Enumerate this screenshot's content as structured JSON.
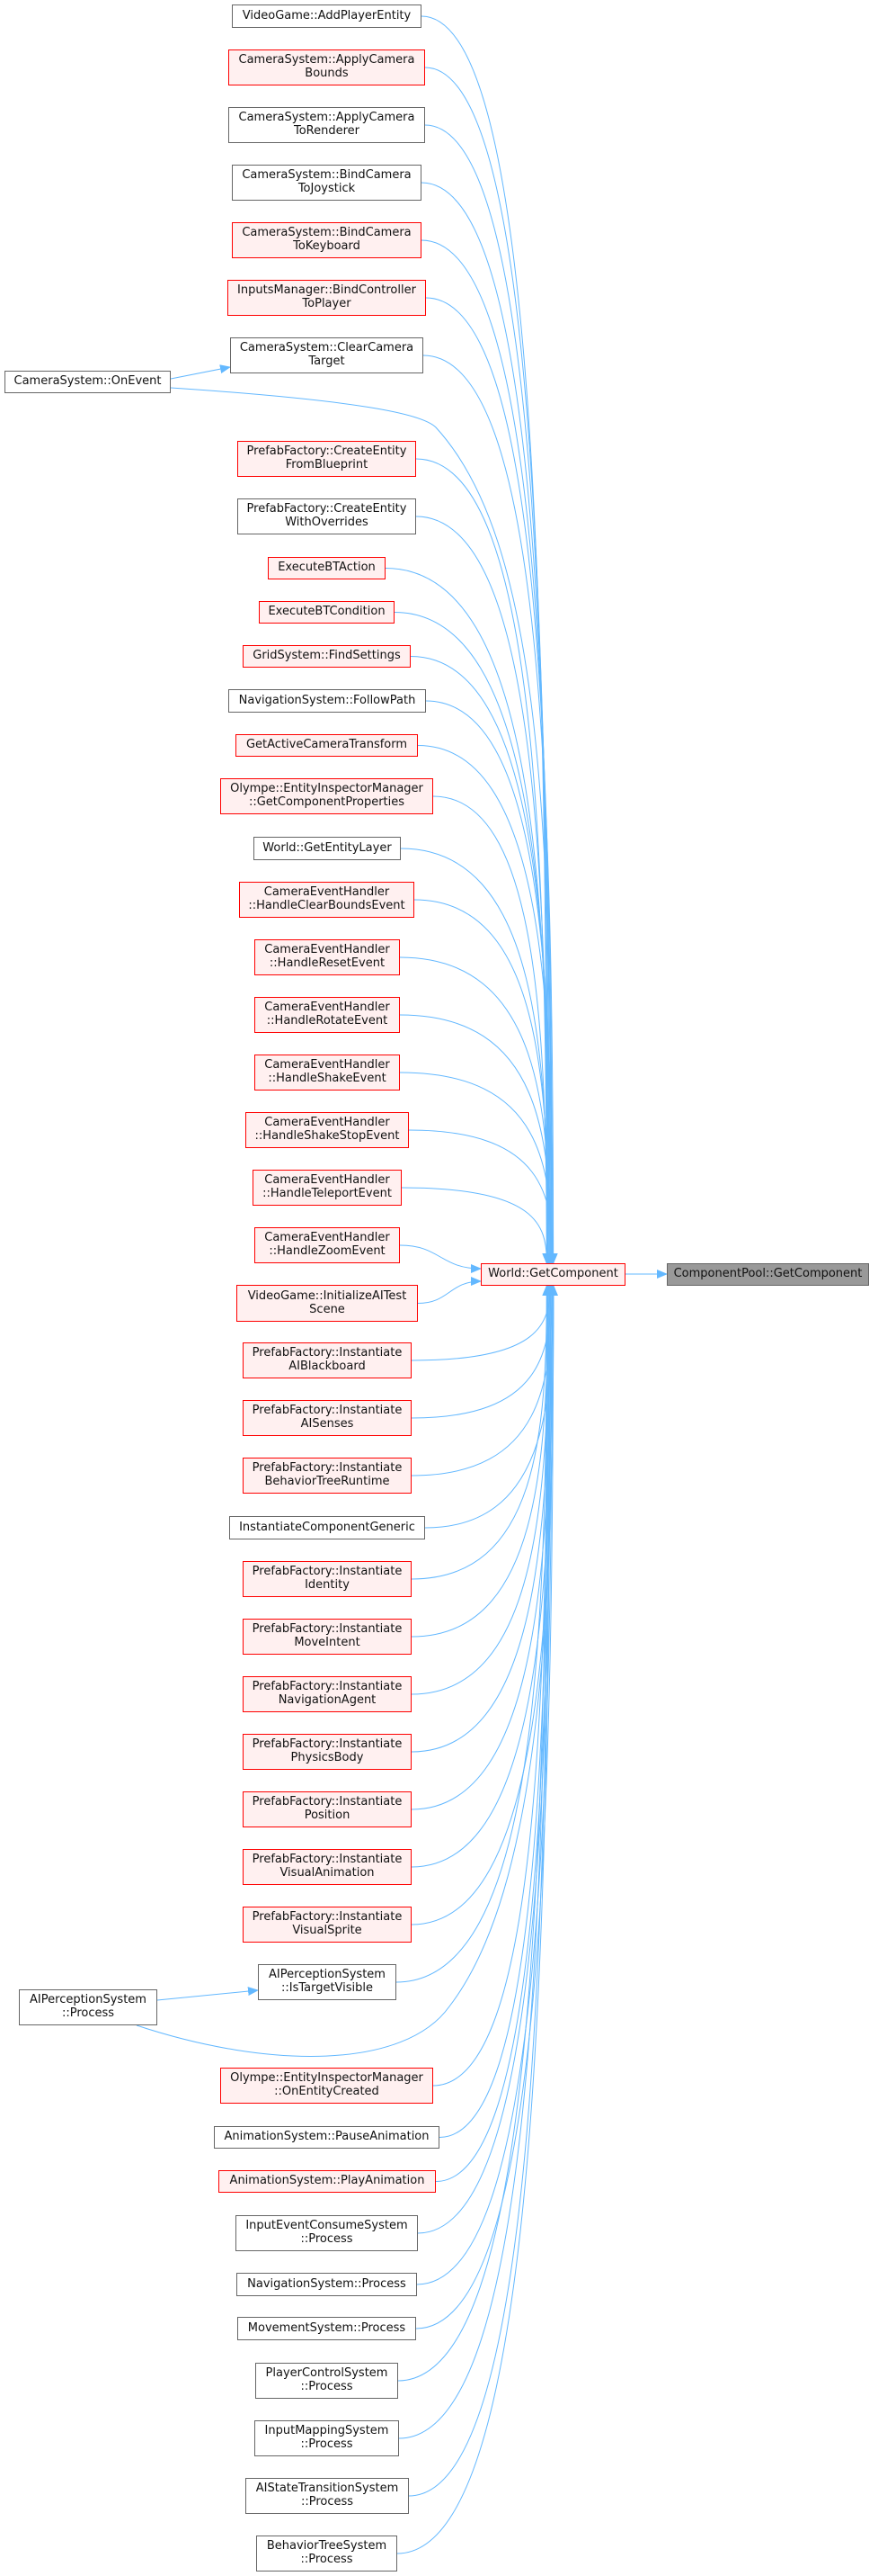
{
  "graph": {
    "colors": {
      "edge": "#63b8ff",
      "truncated_border": "#ff0000",
      "truncated_fill": "#fff0f0",
      "normal_border": "#666666",
      "current_fill": "#999999"
    },
    "nodes": [
      {
        "lines": [
          "VideoGame::AddPlayerEntity"
        ],
        "style": "normal"
      },
      {
        "lines": [
          "CameraSystem::ApplyCamera",
          "Bounds"
        ],
        "style": "red"
      },
      {
        "lines": [
          "CameraSystem::ApplyCamera",
          "ToRenderer"
        ],
        "style": "normal"
      },
      {
        "lines": [
          "CameraSystem::BindCamera",
          "ToJoystick"
        ],
        "style": "normal"
      },
      {
        "lines": [
          "CameraSystem::BindCamera",
          "ToKeyboard"
        ],
        "style": "red"
      },
      {
        "lines": [
          "InputsManager::BindController",
          "ToPlayer"
        ],
        "style": "red"
      },
      {
        "lines": [
          "CameraSystem::ClearCamera",
          "Target"
        ],
        "style": "normal"
      },
      {
        "lines": [
          "PrefabFactory::CreateEntity",
          "FromBlueprint"
        ],
        "style": "red"
      },
      {
        "lines": [
          "PrefabFactory::CreateEntity",
          "WithOverrides"
        ],
        "style": "normal"
      },
      {
        "lines": [
          "ExecuteBTAction"
        ],
        "style": "red"
      },
      {
        "lines": [
          "ExecuteBTCondition"
        ],
        "style": "red"
      },
      {
        "lines": [
          "GridSystem::FindSettings"
        ],
        "style": "red"
      },
      {
        "lines": [
          "NavigationSystem::FollowPath"
        ],
        "style": "normal"
      },
      {
        "lines": [
          "GetActiveCameraTransform"
        ],
        "style": "red"
      },
      {
        "lines": [
          "Olympe::EntityInspectorManager",
          "::GetComponentProperties"
        ],
        "style": "red"
      },
      {
        "lines": [
          "World::GetEntityLayer"
        ],
        "style": "normal"
      },
      {
        "lines": [
          "CameraEventHandler",
          "::HandleClearBoundsEvent"
        ],
        "style": "red"
      },
      {
        "lines": [
          "CameraEventHandler",
          "::HandleResetEvent"
        ],
        "style": "red"
      },
      {
        "lines": [
          "CameraEventHandler",
          "::HandleRotateEvent"
        ],
        "style": "red"
      },
      {
        "lines": [
          "CameraEventHandler",
          "::HandleShakeEvent"
        ],
        "style": "red"
      },
      {
        "lines": [
          "CameraEventHandler",
          "::HandleShakeStopEvent"
        ],
        "style": "red"
      },
      {
        "lines": [
          "CameraEventHandler",
          "::HandleTeleportEvent"
        ],
        "style": "red"
      },
      {
        "lines": [
          "CameraEventHandler",
          "::HandleZoomEvent"
        ],
        "style": "red"
      },
      {
        "lines": [
          "VideoGame::InitializeAITest",
          "Scene"
        ],
        "style": "red"
      },
      {
        "lines": [
          "PrefabFactory::Instantiate",
          "AIBlackboard"
        ],
        "style": "red"
      },
      {
        "lines": [
          "PrefabFactory::Instantiate",
          "AISenses"
        ],
        "style": "red"
      },
      {
        "lines": [
          "PrefabFactory::Instantiate",
          "BehaviorTreeRuntime"
        ],
        "style": "red"
      },
      {
        "lines": [
          "InstantiateComponentGeneric"
        ],
        "style": "normal"
      },
      {
        "lines": [
          "PrefabFactory::Instantiate",
          "Identity"
        ],
        "style": "red"
      },
      {
        "lines": [
          "PrefabFactory::Instantiate",
          "MoveIntent"
        ],
        "style": "red"
      },
      {
        "lines": [
          "PrefabFactory::Instantiate",
          "NavigationAgent"
        ],
        "style": "red"
      },
      {
        "lines": [
          "PrefabFactory::Instantiate",
          "PhysicsBody"
        ],
        "style": "red"
      },
      {
        "lines": [
          "PrefabFactory::Instantiate",
          "Position"
        ],
        "style": "red"
      },
      {
        "lines": [
          "PrefabFactory::Instantiate",
          "VisualAnimation"
        ],
        "style": "red"
      },
      {
        "lines": [
          "PrefabFactory::Instantiate",
          "VisualSprite"
        ],
        "style": "red"
      },
      {
        "lines": [
          "AIPerceptionSystem",
          "::IsTargetVisible"
        ],
        "style": "normal"
      },
      {
        "lines": [
          "Olympe::EntityInspectorManager",
          "::OnEntityCreated"
        ],
        "style": "red"
      },
      {
        "lines": [
          "AnimationSystem::PauseAnimation"
        ],
        "style": "normal"
      },
      {
        "lines": [
          "AnimationSystem::PlayAnimation"
        ],
        "style": "red"
      },
      {
        "lines": [
          "InputEventConsumeSystem",
          "::Process"
        ],
        "style": "normal"
      },
      {
        "lines": [
          "NavigationSystem::Process"
        ],
        "style": "normal"
      },
      {
        "lines": [
          "MovementSystem::Process"
        ],
        "style": "normal"
      },
      {
        "lines": [
          "PlayerControlSystem",
          "::Process"
        ],
        "style": "normal"
      },
      {
        "lines": [
          "InputMappingSystem",
          "::Process"
        ],
        "style": "normal"
      },
      {
        "lines": [
          "AIStateTransitionSystem",
          "::Process"
        ],
        "style": "normal"
      },
      {
        "lines": [
          "BehaviorTreeSystem",
          "::Process"
        ],
        "style": "normal"
      },
      {
        "lines": [
          "CameraSystem::OnEvent"
        ],
        "style": "normal"
      },
      {
        "lines": [
          "AIPerceptionSystem",
          "::Process"
        ],
        "style": "normal"
      },
      {
        "lines": [
          "World::GetComponent"
        ],
        "style": "red"
      },
      {
        "lines": [
          "ComponentPool::GetComponent"
        ],
        "style": "current"
      }
    ],
    "edges": [
      [
        0,
        48
      ],
      [
        1,
        48
      ],
      [
        2,
        48
      ],
      [
        3,
        48
      ],
      [
        4,
        48
      ],
      [
        5,
        48
      ],
      [
        6,
        48
      ],
      [
        7,
        48
      ],
      [
        8,
        48
      ],
      [
        9,
        48
      ],
      [
        10,
        48
      ],
      [
        11,
        48
      ],
      [
        12,
        48
      ],
      [
        13,
        48
      ],
      [
        14,
        48
      ],
      [
        15,
        48
      ],
      [
        16,
        48
      ],
      [
        17,
        48
      ],
      [
        18,
        48
      ],
      [
        19,
        48
      ],
      [
        20,
        48
      ],
      [
        21,
        48
      ],
      [
        22,
        48
      ],
      [
        23,
        48
      ],
      [
        24,
        48
      ],
      [
        25,
        48
      ],
      [
        26,
        48
      ],
      [
        27,
        48
      ],
      [
        28,
        48
      ],
      [
        29,
        48
      ],
      [
        30,
        48
      ],
      [
        31,
        48
      ],
      [
        32,
        48
      ],
      [
        33,
        48
      ],
      [
        34,
        48
      ],
      [
        35,
        48
      ],
      [
        36,
        48
      ],
      [
        37,
        48
      ],
      [
        38,
        48
      ],
      [
        39,
        48
      ],
      [
        40,
        48
      ],
      [
        41,
        48
      ],
      [
        42,
        48
      ],
      [
        43,
        48
      ],
      [
        44,
        48
      ],
      [
        45,
        48
      ],
      [
        46,
        6
      ],
      [
        46,
        48
      ],
      [
        47,
        35
      ],
      [
        47,
        48
      ],
      [
        48,
        49
      ]
    ]
  }
}
